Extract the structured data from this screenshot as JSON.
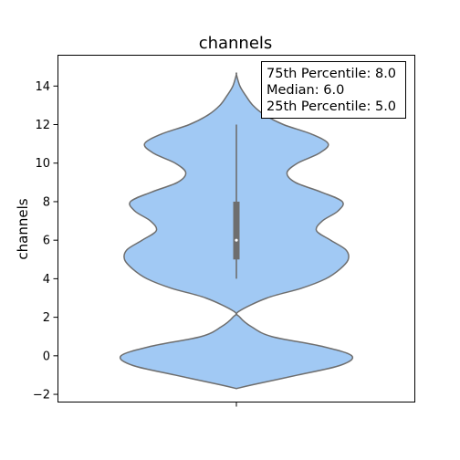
{
  "chart_data": {
    "type": "violin",
    "title": "channels",
    "xlabel": "",
    "ylabel": "channels",
    "ylim": [
      -2.4,
      15.6
    ],
    "yticks": [
      -2,
      0,
      2,
      4,
      6,
      8,
      10,
      12,
      14
    ],
    "grid": false,
    "colors": {
      "violin_fill": "#a1c9f4",
      "violin_edge": "#6e6e6e",
      "box": "#6e6e6e",
      "median_dot": "#ffffff"
    },
    "density_profile": [
      {
        "y": -1.7,
        "half_width": 0.0
      },
      {
        "y": -1.5,
        "half_width": 0.14
      },
      {
        "y": -1.0,
        "half_width": 0.52
      },
      {
        "y": -0.5,
        "half_width": 0.88
      },
      {
        "y": 0.0,
        "half_width": 0.98
      },
      {
        "y": 0.5,
        "half_width": 0.72
      },
      {
        "y": 1.0,
        "half_width": 0.3
      },
      {
        "y": 1.5,
        "half_width": 0.13
      },
      {
        "y": 2.0,
        "half_width": 0.03
      },
      {
        "y": 2.3,
        "half_width": 0.02
      },
      {
        "y": 3.0,
        "half_width": 0.26
      },
      {
        "y": 3.5,
        "half_width": 0.55
      },
      {
        "y": 4.0,
        "half_width": 0.76
      },
      {
        "y": 4.5,
        "half_width": 0.88
      },
      {
        "y": 5.0,
        "half_width": 0.95
      },
      {
        "y": 5.5,
        "half_width": 0.93
      },
      {
        "y": 6.0,
        "half_width": 0.8
      },
      {
        "y": 6.5,
        "half_width": 0.68
      },
      {
        "y": 7.0,
        "half_width": 0.73
      },
      {
        "y": 7.5,
        "half_width": 0.86
      },
      {
        "y": 8.0,
        "half_width": 0.9
      },
      {
        "y": 8.5,
        "half_width": 0.72
      },
      {
        "y": 9.0,
        "half_width": 0.5
      },
      {
        "y": 9.5,
        "half_width": 0.43
      },
      {
        "y": 10.0,
        "half_width": 0.52
      },
      {
        "y": 10.5,
        "half_width": 0.7
      },
      {
        "y": 11.0,
        "half_width": 0.78
      },
      {
        "y": 11.5,
        "half_width": 0.64
      },
      {
        "y": 12.0,
        "half_width": 0.4
      },
      {
        "y": 12.5,
        "half_width": 0.24
      },
      {
        "y": 13.0,
        "half_width": 0.14
      },
      {
        "y": 13.5,
        "half_width": 0.08
      },
      {
        "y": 14.0,
        "half_width": 0.03
      },
      {
        "y": 14.6,
        "half_width": 0.0
      }
    ],
    "whisker_low": 4.0,
    "whisker_high": 12.0,
    "q1": 5.0,
    "median": 6.0,
    "q3": 8.0,
    "annotation": [
      "75th Percentile: 8.0",
      "Median: 6.0",
      "25th Percentile: 5.0"
    ]
  }
}
